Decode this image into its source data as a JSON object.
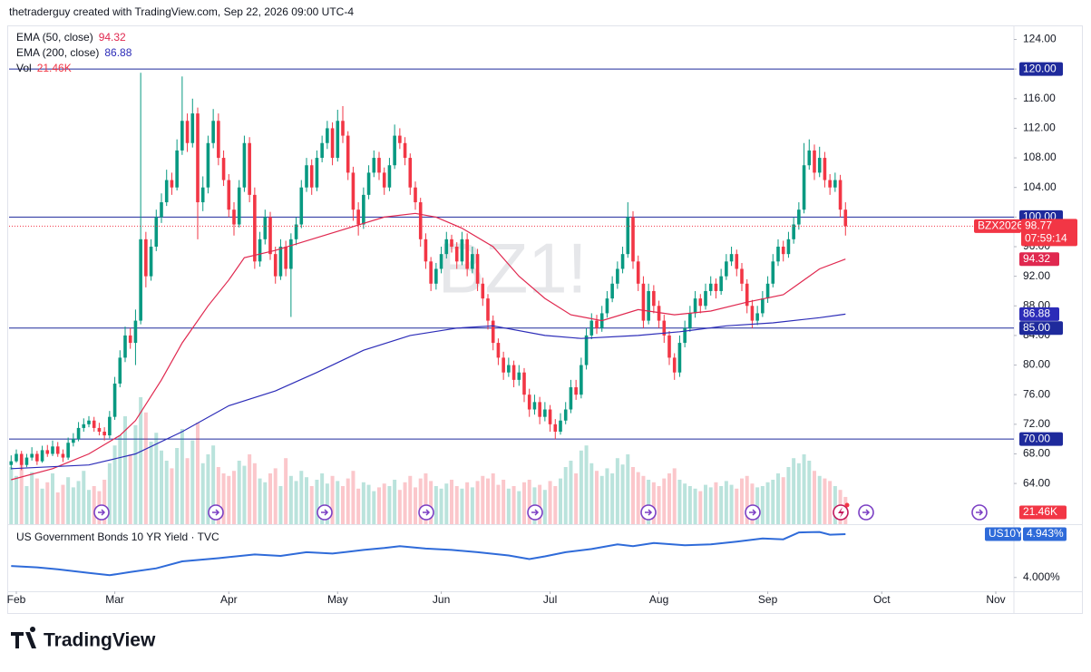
{
  "chart_data": {
    "type": "candlestick",
    "header": "thetraderguy created with TradingView.com, Sep 22, 2026 09:00 UTC-4",
    "watermark": "BZ1!",
    "symbol": "BZX2026",
    "countdown": "07:59:14",
    "brand": "TradingView",
    "up_color": "#089981",
    "down_color": "#f23645",
    "xlim": [
      -0.4,
      193.5
    ],
    "xticks": [
      {
        "value": 1,
        "label": "Feb"
      },
      {
        "value": 20,
        "label": "Mar"
      },
      {
        "value": 42,
        "label": "Apr"
      },
      {
        "value": 63,
        "label": "May"
      },
      {
        "value": 83,
        "label": "Jun"
      },
      {
        "value": 104,
        "label": "Jul"
      },
      {
        "value": 125,
        "label": "Aug"
      },
      {
        "value": 146,
        "label": "Sep"
      },
      {
        "value": 168,
        "label": "Oct"
      },
      {
        "value": 190,
        "label": "Nov"
      }
    ],
    "ylim": [
      58.5,
      125.9
    ],
    "yticks": [
      {
        "value": 124,
        "label": "124.00"
      },
      {
        "value": 120,
        "label": "120.00"
      },
      {
        "value": 116,
        "label": "116.00"
      },
      {
        "value": 112,
        "label": "112.00"
      },
      {
        "value": 108,
        "label": "108.00"
      },
      {
        "value": 104,
        "label": "104.00"
      },
      {
        "value": 100,
        "label": "100.00"
      },
      {
        "value": 96,
        "label": "96.00"
      },
      {
        "value": 92,
        "label": "92.00"
      },
      {
        "value": 88,
        "label": "88.00"
      },
      {
        "value": 84,
        "label": "84.00"
      },
      {
        "value": 80,
        "label": "80.00"
      },
      {
        "value": 76,
        "label": "76.00"
      },
      {
        "value": 72,
        "label": "72.00"
      },
      {
        "value": 68,
        "label": "68.00"
      },
      {
        "value": 64,
        "label": "64.00"
      }
    ],
    "hline_color": "#1e2a9c",
    "hlines": [
      {
        "value": 120,
        "label": "120.00"
      },
      {
        "value": 100,
        "label": "100.00"
      },
      {
        "value": 85,
        "label": "85.00"
      },
      {
        "value": 70,
        "label": "70.00"
      }
    ],
    "ohlc": [
      [
        66.5,
        67.8,
        65.9,
        67
      ],
      [
        67,
        68.6,
        66.8,
        68
      ],
      [
        68,
        68.4,
        65.8,
        66.5
      ],
      [
        66.5,
        68,
        66.2,
        67.5
      ],
      [
        67.5,
        68.9,
        67.1,
        68
      ],
      [
        68,
        68.4,
        66.5,
        67
      ],
      [
        67,
        69.1,
        66.8,
        68.5
      ],
      [
        68.5,
        69.2,
        67.6,
        68
      ],
      [
        68,
        69.8,
        67.7,
        69
      ],
      [
        69,
        69.6,
        67.6,
        68
      ],
      [
        68,
        68.6,
        66.9,
        67.5
      ],
      [
        67.5,
        70.2,
        67.2,
        69.5
      ],
      [
        69.5,
        70.8,
        69,
        70
      ],
      [
        70,
        72.3,
        69.7,
        71.5
      ],
      [
        71.5,
        72.8,
        71,
        72
      ],
      [
        72,
        73.1,
        71.6,
        72.5
      ],
      [
        72.5,
        73,
        71,
        71.5
      ],
      [
        71.5,
        72.2,
        70.5,
        71
      ],
      [
        71,
        71.6,
        69.8,
        70.5
      ],
      [
        70.5,
        73.8,
        70.1,
        73
      ],
      [
        73,
        78.4,
        72.6,
        77.5
      ],
      [
        77.5,
        82,
        77,
        81
      ],
      [
        81,
        85.2,
        80.4,
        84
      ],
      [
        84,
        85,
        82.2,
        83
      ],
      [
        83,
        87.5,
        80,
        86
      ],
      [
        86,
        119.5,
        85.5,
        97
      ],
      [
        97,
        98,
        90.5,
        92
      ],
      [
        92,
        97,
        91.4,
        96
      ],
      [
        96,
        101,
        95.4,
        100
      ],
      [
        100,
        103.2,
        99.2,
        102
      ],
      [
        102,
        106.4,
        101.5,
        105
      ],
      [
        105,
        106,
        103,
        104
      ],
      [
        104,
        110.5,
        103.6,
        109
      ],
      [
        109,
        119,
        108.4,
        113
      ],
      [
        113,
        114,
        108.8,
        110
      ],
      [
        110,
        116,
        109.4,
        114
      ],
      [
        114,
        114.8,
        97,
        102
      ],
      [
        102,
        105.5,
        100.8,
        104
      ],
      [
        104,
        111,
        103.2,
        110
      ],
      [
        110,
        114.6,
        109.3,
        113
      ],
      [
        113,
        114,
        107,
        108
      ],
      [
        108,
        109,
        104.2,
        105
      ],
      [
        105,
        105.8,
        100,
        101
      ],
      [
        101,
        102,
        97.5,
        99
      ],
      [
        99,
        105,
        98.6,
        104
      ],
      [
        104,
        111,
        103.4,
        110
      ],
      [
        110,
        110.8,
        102,
        103
      ],
      [
        103,
        104,
        93,
        94
      ],
      [
        94,
        98,
        93.3,
        97
      ],
      [
        97,
        101,
        96.3,
        100
      ],
      [
        100,
        100.7,
        94.2,
        95
      ],
      [
        95,
        96,
        91,
        92
      ],
      [
        92,
        97,
        91.5,
        96
      ],
      [
        96,
        96.8,
        92,
        93
      ],
      [
        93,
        97.8,
        86.5,
        97
      ],
      [
        97,
        100,
        96.2,
        99
      ],
      [
        99,
        105,
        98.5,
        104
      ],
      [
        104,
        108,
        103.4,
        107
      ],
      [
        107,
        107.8,
        103,
        104
      ],
      [
        104,
        109,
        103.5,
        108
      ],
      [
        108,
        111,
        107.4,
        110
      ],
      [
        110,
        113,
        109.2,
        112
      ],
      [
        112,
        112.8,
        107,
        108
      ],
      [
        108,
        114.5,
        107.5,
        113
      ],
      [
        113,
        115,
        110,
        111
      ],
      [
        111,
        111.6,
        105,
        106
      ],
      [
        106,
        106.8,
        99.5,
        101
      ],
      [
        101,
        102,
        97.5,
        99
      ],
      [
        99,
        104,
        98.4,
        103
      ],
      [
        103,
        107,
        102.4,
        106
      ],
      [
        106,
        109,
        105.4,
        108
      ],
      [
        108,
        108.8,
        105,
        106
      ],
      [
        106,
        106.7,
        103,
        104
      ],
      [
        104,
        108,
        103.5,
        107
      ],
      [
        107,
        112.5,
        106.5,
        111
      ],
      [
        111,
        112,
        109.2,
        110
      ],
      [
        110,
        110.8,
        107,
        108
      ],
      [
        108,
        108.6,
        103,
        104
      ],
      [
        104,
        104.8,
        101,
        102
      ],
      [
        102,
        102.6,
        96,
        97
      ],
      [
        97,
        97.8,
        93,
        94
      ],
      [
        94,
        94.6,
        90,
        91
      ],
      [
        91,
        93.8,
        90.2,
        93
      ],
      [
        93,
        96,
        92.4,
        95
      ],
      [
        95,
        98,
        94.4,
        97
      ],
      [
        97,
        97.6,
        95.2,
        96
      ],
      [
        96,
        96.6,
        93,
        94
      ],
      [
        94,
        98,
        93.5,
        97
      ],
      [
        97,
        97.8,
        92,
        93
      ],
      [
        93,
        96,
        92.4,
        95
      ],
      [
        95,
        95.7,
        90,
        91
      ],
      [
        91,
        91.8,
        88,
        89
      ],
      [
        89,
        89.6,
        84.8,
        86
      ],
      [
        86,
        86.7,
        82,
        83
      ],
      [
        83,
        83.6,
        80,
        81
      ],
      [
        81,
        81.8,
        78,
        79
      ],
      [
        79,
        81,
        78.4,
        80
      ],
      [
        80,
        80.6,
        77,
        78
      ],
      [
        78,
        80,
        77.2,
        79
      ],
      [
        79,
        79.6,
        75,
        76
      ],
      [
        76,
        76.8,
        73,
        74
      ],
      [
        74,
        76,
        73.3,
        75
      ],
      [
        75,
        75.7,
        72,
        73
      ],
      [
        73,
        75,
        72.4,
        74
      ],
      [
        74,
        74.6,
        71,
        72
      ],
      [
        72,
        72.7,
        70,
        71
      ],
      [
        71,
        73.5,
        70.6,
        72.5
      ],
      [
        72.5,
        75,
        72,
        74
      ],
      [
        74,
        78,
        73.5,
        77
      ],
      [
        77,
        78,
        75.3,
        76
      ],
      [
        76,
        81,
        75.5,
        80
      ],
      [
        80,
        85,
        79.4,
        84
      ],
      [
        84,
        87,
        83.5,
        86
      ],
      [
        86,
        86.8,
        84.2,
        85
      ],
      [
        85,
        88,
        84.5,
        87
      ],
      [
        87,
        90,
        86.4,
        89
      ],
      [
        89,
        92,
        88.5,
        91
      ],
      [
        91,
        94,
        90.3,
        93
      ],
      [
        93,
        96,
        92.4,
        95
      ],
      [
        95,
        102,
        94.5,
        100
      ],
      [
        100,
        100.8,
        93,
        94
      ],
      [
        94,
        94.8,
        90,
        91
      ],
      [
        91,
        92,
        85,
        86
      ],
      [
        86,
        91,
        85.5,
        90
      ],
      [
        90,
        90.8,
        87,
        88
      ],
      [
        88,
        88.7,
        85,
        86
      ],
      [
        86,
        86.8,
        83,
        84
      ],
      [
        84,
        84.6,
        80,
        81
      ],
      [
        81,
        81.6,
        78,
        79
      ],
      [
        79,
        84,
        78.4,
        83
      ],
      [
        83,
        86,
        82.4,
        85
      ],
      [
        85,
        88,
        84.5,
        87
      ],
      [
        87,
        90,
        86.4,
        89
      ],
      [
        89,
        89.6,
        87,
        88
      ],
      [
        88,
        91,
        87.5,
        90
      ],
      [
        90,
        92,
        89.4,
        91
      ],
      [
        91,
        91.7,
        89,
        90
      ],
      [
        90,
        93,
        89.5,
        92
      ],
      [
        92,
        95,
        91.5,
        94
      ],
      [
        94,
        96,
        93.4,
        95
      ],
      [
        95,
        95.6,
        92,
        93
      ],
      [
        93,
        93.8,
        90,
        91
      ],
      [
        91,
        91.6,
        87,
        88
      ],
      [
        88,
        88.8,
        85,
        86
      ],
      [
        86,
        88,
        85.4,
        87
      ],
      [
        87,
        90,
        86.5,
        89
      ],
      [
        89,
        92,
        88.4,
        91
      ],
      [
        91,
        95,
        90.5,
        94
      ],
      [
        94,
        97,
        93.4,
        96
      ],
      [
        96,
        96.8,
        94,
        95
      ],
      [
        95,
        98,
        94.5,
        97
      ],
      [
        97,
        100,
        96.4,
        99
      ],
      [
        99,
        102,
        98.3,
        101
      ],
      [
        101,
        110,
        100.5,
        107
      ],
      [
        107,
        110.5,
        106.4,
        109
      ],
      [
        109,
        109.8,
        105,
        106
      ],
      [
        106,
        109.5,
        105.4,
        108
      ],
      [
        108,
        108.8,
        104,
        105
      ],
      [
        105,
        105.8,
        103,
        104
      ],
      [
        104,
        106,
        103.4,
        105
      ],
      [
        105,
        105.7,
        100,
        101
      ],
      [
        101,
        102,
        97.5,
        98.77
      ]
    ],
    "volume": {
      "name": "Vol",
      "last_label": "21.46K",
      "values": [
        45000,
        38000,
        52000,
        30000,
        41000,
        36000,
        28000,
        33000,
        40000,
        25000,
        31000,
        37000,
        29000,
        34000,
        42000,
        27000,
        30000,
        26000,
        35000,
        48000,
        62000,
        70000,
        85000,
        55000,
        78000,
        100000,
        88000,
        65000,
        72000,
        58000,
        50000,
        44000,
        60000,
        75000,
        52000,
        66000,
        80000,
        48000,
        55000,
        62000,
        45000,
        40000,
        38000,
        42000,
        50000,
        46000,
        55000,
        48000,
        36000,
        33000,
        40000,
        44000,
        30000,
        52000,
        38000,
        34000,
        42000,
        37000,
        30000,
        35000,
        40000,
        32000,
        38000,
        34000,
        30000,
        36000,
        42000,
        28000,
        33000,
        31000,
        26000,
        29000,
        32000,
        30000,
        35000,
        27000,
        33000,
        38000,
        29000,
        36000,
        40000,
        34000,
        30000,
        28000,
        32000,
        35000,
        30000,
        28000,
        33000,
        29000,
        34000,
        38000,
        36000,
        40000,
        31000,
        35000,
        28000,
        30000,
        26000,
        33000,
        35000,
        29000,
        31000,
        27000,
        34000,
        30000,
        36000,
        45000,
        50000,
        40000,
        58000,
        62000,
        48000,
        42000,
        38000,
        44000,
        40000,
        52000,
        47000,
        55000,
        45000,
        41000,
        38000,
        35000,
        33000,
        30000,
        36000,
        40000,
        44000,
        35000,
        32000,
        30000,
        28000,
        26000,
        31000,
        29000,
        33000,
        30000,
        34000,
        31000,
        28000,
        36000,
        38000,
        32000,
        29000,
        30000,
        33000,
        35000,
        40000,
        37000,
        45000,
        52000,
        48000,
        55000,
        50000,
        42000,
        38000,
        36000,
        34000,
        30000,
        27000,
        21460
      ]
    },
    "ema": [
      {
        "name": "EMA (50, close)",
        "color": "#e0284f",
        "x": [
          0,
          8,
          15,
          21,
          24,
          29,
          33,
          38,
          42,
          45,
          51,
          58,
          65,
          72,
          78,
          82,
          87,
          93,
          98,
          103,
          108,
          114,
          121,
          128,
          135,
          142,
          149,
          152,
          156,
          161
        ],
        "values": [
          64.5,
          66,
          68,
          70.5,
          72.5,
          78,
          83,
          88,
          91.5,
          94.5,
          95.5,
          97,
          98.5,
          100,
          100.5,
          100,
          98.5,
          96,
          92,
          89,
          86.8,
          86,
          87.5,
          86.8,
          87.3,
          88.5,
          89.5,
          91,
          93,
          94.32
        ]
      },
      {
        "name": "EMA (200, close)",
        "color": "#2c2cb8",
        "x": [
          0,
          15,
          24,
          33,
          42,
          51,
          59,
          68,
          77,
          86,
          93,
          103,
          110,
          121,
          129,
          138,
          147,
          156,
          161
        ],
        "values": [
          66,
          66.5,
          68,
          71,
          74.5,
          76.5,
          79,
          82,
          84,
          85,
          85.3,
          84,
          83.6,
          84,
          84.5,
          85.3,
          85.7,
          86.4,
          86.88
        ]
      }
    ],
    "pane2": {
      "title": "US Government Bonds 10 YR Yield · TVC",
      "symbol": "US10Y",
      "color": "#2f6bd9",
      "last_label": "4.943%",
      "ylim": [
        3.7,
        5.14
      ],
      "yticks": [
        {
          "value": 4,
          "label": "4.000%"
        }
      ],
      "x": [
        0,
        5,
        9,
        15,
        19,
        23,
        28,
        33,
        40,
        47,
        52,
        57,
        62,
        68,
        72,
        75,
        80,
        85,
        90,
        96,
        100,
        103,
        107,
        112,
        117,
        120,
        124,
        130,
        135,
        140,
        145,
        149,
        152,
        156,
        158,
        161
      ],
      "values": [
        4.25,
        4.22,
        4.18,
        4.1,
        4.05,
        4.12,
        4.2,
        4.35,
        4.42,
        4.5,
        4.47,
        4.55,
        4.52,
        4.6,
        4.64,
        4.68,
        4.63,
        4.6,
        4.55,
        4.48,
        4.4,
        4.46,
        4.55,
        4.62,
        4.72,
        4.68,
        4.75,
        4.7,
        4.72,
        4.78,
        4.85,
        4.83,
        4.98,
        4.99,
        4.93,
        4.943
      ]
    }
  }
}
